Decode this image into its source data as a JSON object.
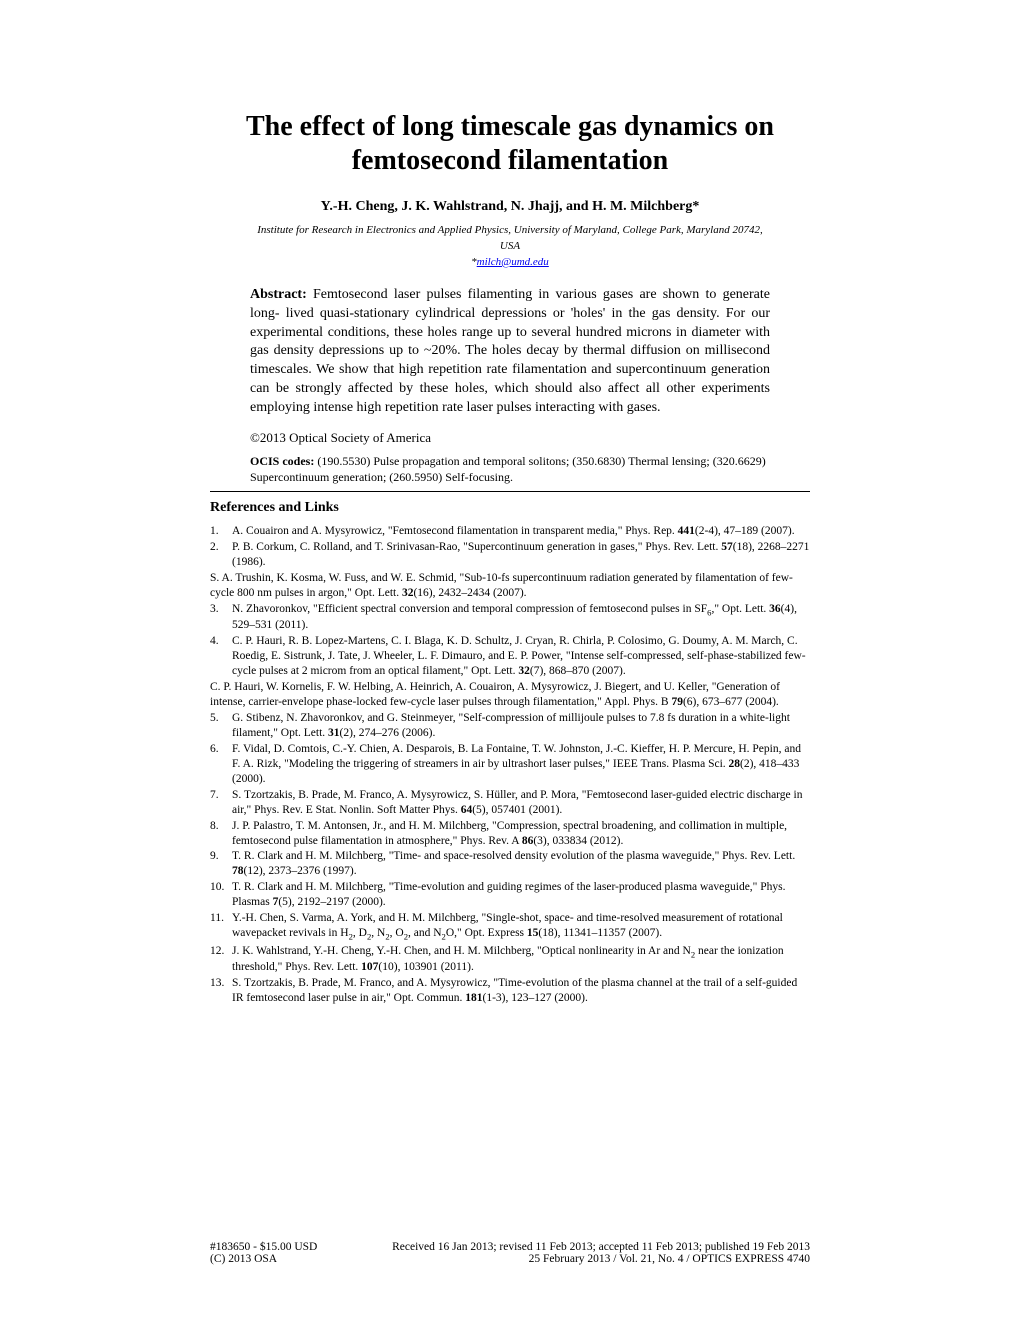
{
  "title": "The effect of long timescale gas dynamics on femtosecond filamentation",
  "authors": "Y.-H. Cheng, J. K. Wahlstrand, N. Jhajj, and H. M. Milchberg*",
  "affiliation_line1": "Institute for Research in Electronics and Applied Physics, University of Maryland, College Park, Maryland 20742,",
  "affiliation_line2": "USA",
  "email_prefix": "*",
  "email": "milch@umd.edu",
  "abstract_label": "Abstract:",
  "abstract_text": " Femtosecond laser pulses filamenting in various gases are shown to generate long- lived quasi-stationary cylindrical depressions or 'holes' in the gas density. For our experimental conditions, these holes range up to several hundred microns in diameter with gas density depressions up to ~20%. The holes decay by thermal diffusion on millisecond timescales. We show that high repetition rate filamentation and supercontinuum generation can be strongly affected by these holes, which should also affect all other experiments employing intense high repetition rate laser pulses interacting with gases.",
  "copyright": "©2013 Optical Society of America",
  "ocis_label": "OCIS codes:",
  "ocis_text": " (190.5530) Pulse propagation and temporal solitons; (350.6830) Thermal lensing; (320.6629) Supercontinuum generation; (260.5950) Self-focusing.",
  "references_heading": "References and Links",
  "references": [
    {
      "num": "1.",
      "text": "A. Couairon and A. Mysyrowicz, \"Femtosecond filamentation in transparent media,\" Phys. Rep. <b>441</b>(2-4), 47–189 (2007)."
    },
    {
      "num": "2.",
      "text": "P. B. Corkum, C. Rolland, and T. Srinivasan-Rao, \"Supercontinuum generation in gases,\" Phys. Rev. Lett. <b>57</b>(18), 2268–2271 (1986)."
    },
    {
      "num": "",
      "text": "S. A. Trushin, K. Kosma, W. Fuss, and W. E. Schmid, \"Sub-10-fs supercontinuum radiation generated by filamentation of few-cycle 800 nm pulses in argon,\" Opt. Lett. <b>32</b>(16), 2432–2434 (2007)."
    },
    {
      "num": "3.",
      "text": "N. Zhavoronkov, \"Efficient spectral conversion and temporal compression of femtosecond pulses in SF<sub>6</sub>,\" Opt. Lett. <b>36</b>(4), 529–531 (2011)."
    },
    {
      "num": "4.",
      "text": "C. P. Hauri, R. B. Lopez-Martens, C. I. Blaga, K. D. Schultz, J. Cryan, R. Chirla, P. Colosimo, G. Doumy, A. M. March, C. Roedig, E. Sistrunk, J. Tate, J. Wheeler, L. F. Dimauro, and E. P. Power, \"Intense self-compressed, self-phase-stabilized few-cycle pulses at 2 microm from an optical filament,\" Opt. Lett. <b>32</b>(7), 868–870 (2007)."
    },
    {
      "num": "",
      "text": "C. P. Hauri, W. Kornelis, F. W. Helbing, A. Heinrich, A. Couairon, A. Mysyrowicz, J. Biegert, and U. Keller, \"Generation of intense, carrier-envelope phase-locked few-cycle laser pulses through filamentation,\" Appl. Phys. B <b>79</b>(6), 673–677 (2004)."
    },
    {
      "num": "5.",
      "text": "G. Stibenz, N. Zhavoronkov, and G. Steinmeyer, \"Self-compression of millijoule pulses to 7.8 fs duration in a white-light filament,\" Opt. Lett. <b>31</b>(2), 274–276 (2006)."
    },
    {
      "num": "6.",
      "text": "F. Vidal, D. Comtois, C.-Y. Chien, A. Desparois, B. La Fontaine, T. W. Johnston, J.-C. Kieffer, H. P. Mercure, H. Pepin, and F. A. Rizk, \"Modeling the triggering of streamers in air by ultrashort laser pulses,\" IEEE Trans. Plasma Sci. <b>28</b>(2), 418–433 (2000)."
    },
    {
      "num": "7.",
      "text": "S. Tzortzakis, B. Prade, M. Franco, A. Mysyrowicz, S. Hüller, and P. Mora, \"Femtosecond laser-guided electric discharge in air,\" Phys. Rev. E Stat. Nonlin. Soft Matter Phys. <b>64</b>(5), 057401 (2001)."
    },
    {
      "num": "8.",
      "text": "J. P. Palastro, T. M. Antonsen, Jr., and H. M. Milchberg, \"Compression, spectral broadening, and collimation in multiple, femtosecond pulse filamentation in atmosphere,\" Phys. Rev. A <b>86</b>(3), 033834 (2012)."
    },
    {
      "num": "9.",
      "text": "T. R. Clark and H. M. Milchberg, \"Time- and space-resolved density evolution of the plasma waveguide,\" Phys. Rev. Lett. <b>78</b>(12), 2373–2376 (1997)."
    },
    {
      "num": "10.",
      "text": "T. R. Clark and H. M. Milchberg, \"Time-evolution and guiding regimes of the laser-produced plasma waveguide,\" Phys. Plasmas <b>7</b>(5), 2192–2197 (2000)."
    },
    {
      "num": "11.",
      "text": "Y.-H. Chen, S. Varma, A. York, and H. M. Milchberg, \"Single-shot, space- and time-resolved measurement of rotational wavepacket revivals in H<sub>2</sub>, D<sub>2</sub>, N<sub>2</sub>, O<sub>2</sub>, and N<sub>2</sub>O,\" Opt. Express <b>15</b>(18), 11341–11357 (2007)."
    },
    {
      "num": "12.",
      "text": "J. K. Wahlstrand, Y.-H. Cheng, Y.-H. Chen, and H. M. Milchberg, \"Optical nonlinearity in Ar and N<sub>2</sub> near the ionization threshold,\" Phys. Rev. Lett. <b>107</b>(10), 103901 (2011)."
    },
    {
      "num": "13.",
      "text": "S. Tzortzakis, B. Prade, M. Franco, and A. Mysyrowicz, \"Time-evolution of the plasma channel at the trail of a self-guided IR femtosecond laser pulse in air,\" Opt. Commun. <b>181</b>(1-3), 123–127 (2000)."
    }
  ],
  "footer": {
    "article_id": "#183650 - $15.00 USD",
    "dates": "Received 16 Jan 2013; revised 11 Feb 2013; accepted 11 Feb 2013; published 19 Feb 2013",
    "copyright_holder": "(C) 2013 OSA",
    "issue": "25 February 2013 / Vol. 21,  No. 4 / OPTICS EXPRESS  4740"
  }
}
